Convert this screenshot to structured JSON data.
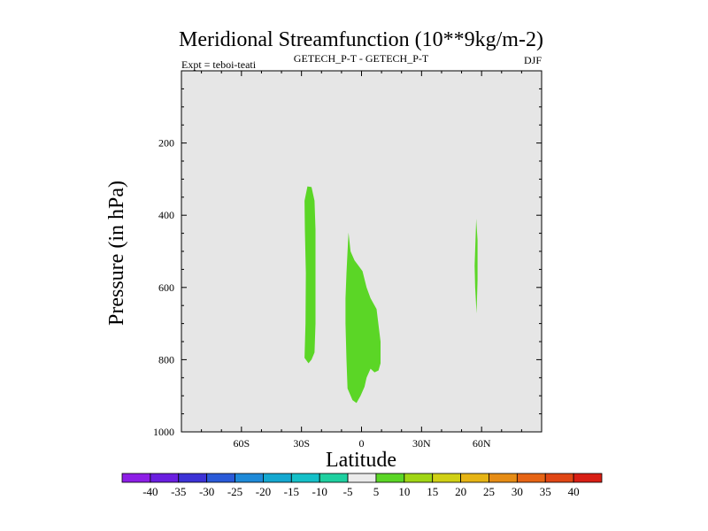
{
  "chart_data": {
    "type": "heatmap",
    "title": "Meridional Streamfunction (10**9kg/m-2)",
    "subtitle_left": "Expt = teboi-teati",
    "subtitle_center": "GETECH_P-T - GETECH_P-T",
    "subtitle_right": "DJF",
    "xlabel": "Latitude",
    "ylabel": "Pressure (in hPa)",
    "xlim": [
      -90,
      90
    ],
    "ylim": [
      1000,
      0
    ],
    "x_ticks": [
      {
        "value": -60,
        "label": "60S"
      },
      {
        "value": -30,
        "label": "30S"
      },
      {
        "value": 0,
        "label": "0"
      },
      {
        "value": 30,
        "label": "30N"
      },
      {
        "value": 60,
        "label": "60N"
      }
    ],
    "y_ticks": [
      {
        "value": 200,
        "label": "200"
      },
      {
        "value": 400,
        "label": "400"
      },
      {
        "value": 600,
        "label": "600"
      },
      {
        "value": 800,
        "label": "800"
      },
      {
        "value": 1000,
        "label": "1000"
      }
    ],
    "background_color": "#e6e6e6",
    "background_level": "-5 to 5",
    "regions": [
      {
        "name": "region-30s",
        "level": "5 to 10",
        "color": "#5bd626",
        "points": [
          [
            -27,
            320
          ],
          [
            -25,
            322
          ],
          [
            -23.5,
            360
          ],
          [
            -23,
            440
          ],
          [
            -23,
            560
          ],
          [
            -23,
            700
          ],
          [
            -23.5,
            780
          ],
          [
            -25,
            800
          ],
          [
            -26.5,
            810
          ],
          [
            -28.5,
            795
          ],
          [
            -28,
            700
          ],
          [
            -27.8,
            560
          ],
          [
            -28.3,
            440
          ],
          [
            -28.5,
            360
          ]
        ]
      },
      {
        "name": "region-equator",
        "level": "5 to 10",
        "color": "#5bd626",
        "points": [
          [
            -6.5,
            448
          ],
          [
            -5.5,
            500
          ],
          [
            -3.5,
            525
          ],
          [
            -1.5,
            540
          ],
          [
            0.5,
            555
          ],
          [
            2.5,
            600
          ],
          [
            4.5,
            630
          ],
          [
            7.5,
            660
          ],
          [
            9.5,
            750
          ],
          [
            9.5,
            810
          ],
          [
            8.5,
            830
          ],
          [
            6.5,
            835
          ],
          [
            4.5,
            825
          ],
          [
            2.5,
            850
          ],
          [
            1.5,
            875
          ],
          [
            -0.5,
            900
          ],
          [
            -2.5,
            920
          ],
          [
            -4.5,
            912
          ],
          [
            -7,
            880
          ],
          [
            -7.5,
            800
          ],
          [
            -8,
            700
          ],
          [
            -8,
            630
          ],
          [
            -7.5,
            560
          ],
          [
            -7,
            500
          ]
        ]
      },
      {
        "name": "region-57n",
        "level": "5 to 10",
        "color": "#5bd626",
        "points": [
          [
            57.3,
            410
          ],
          [
            58,
            470
          ],
          [
            58,
            580
          ],
          [
            57.5,
            672
          ],
          [
            56.8,
            600
          ],
          [
            56.5,
            540
          ]
        ]
      }
    ],
    "colorbar": {
      "labels": [
        "-40",
        "-35",
        "-30",
        "-25",
        "-20",
        "-15",
        "-10",
        "-5",
        "5",
        "10",
        "15",
        "20",
        "25",
        "30",
        "35",
        "40"
      ],
      "colors": [
        "#8d1ee6",
        "#6a1ee0",
        "#3c32d6",
        "#2a5ad8",
        "#1e8ad8",
        "#14a8d0",
        "#14c0c8",
        "#1ed0a0",
        "#ebebeb",
        "#5bd626",
        "#a0d614",
        "#d0d014",
        "#e6b414",
        "#e68c14",
        "#e66414",
        "#e04614",
        "#d81e14"
      ]
    }
  }
}
